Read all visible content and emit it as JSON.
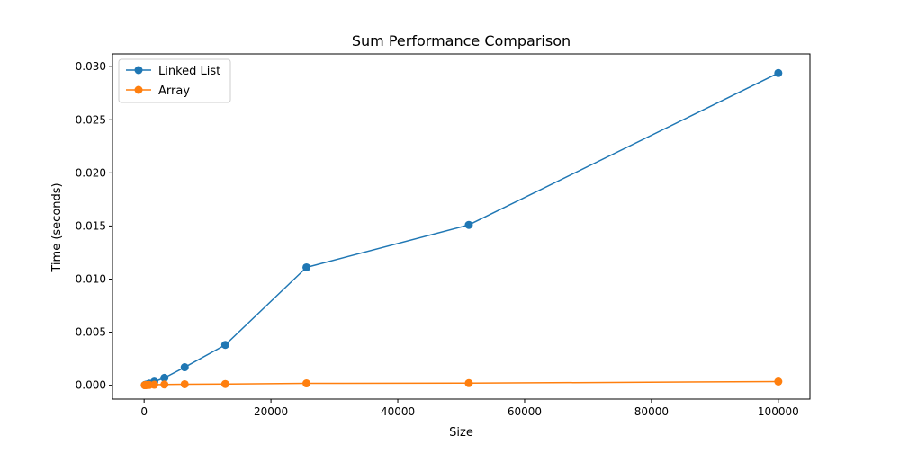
{
  "chart_data": {
    "type": "line",
    "title": "Sum Performance Comparison",
    "xlabel": "Size",
    "ylabel": "Time (seconds)",
    "xlim": [
      -4990,
      104990
    ],
    "ylim": [
      -0.0013,
      0.0312
    ],
    "x_ticks": [
      0,
      20000,
      40000,
      60000,
      80000,
      100000
    ],
    "x_tick_labels": [
      "0",
      "20000",
      "40000",
      "60000",
      "80000",
      "100000"
    ],
    "y_ticks": [
      0,
      0.005,
      0.01,
      0.015,
      0.02,
      0.025,
      0.03
    ],
    "y_tick_labels": [
      "0.000",
      "0.005",
      "0.010",
      "0.015",
      "0.020",
      "0.025",
      "0.030"
    ],
    "grid": false,
    "legend_position": "upper-left",
    "x": [
      100,
      200,
      400,
      800,
      1600,
      3200,
      6400,
      12800,
      25600,
      51200,
      100000
    ],
    "series": [
      {
        "name": "Linked List",
        "color": "#1f77b4",
        "marker": "circle",
        "values": [
          2e-05,
          4e-05,
          8e-05,
          0.00016,
          0.00034,
          0.0007,
          0.0017,
          0.0038,
          0.0111,
          0.0151,
          0.0294
        ]
      },
      {
        "name": "Array",
        "color": "#ff7f0e",
        "marker": "circle",
        "values": [
          1e-05,
          1e-05,
          2e-05,
          3e-05,
          5e-05,
          7e-05,
          0.0001,
          0.00012,
          0.00018,
          0.0002,
          0.00035
        ]
      }
    ]
  }
}
